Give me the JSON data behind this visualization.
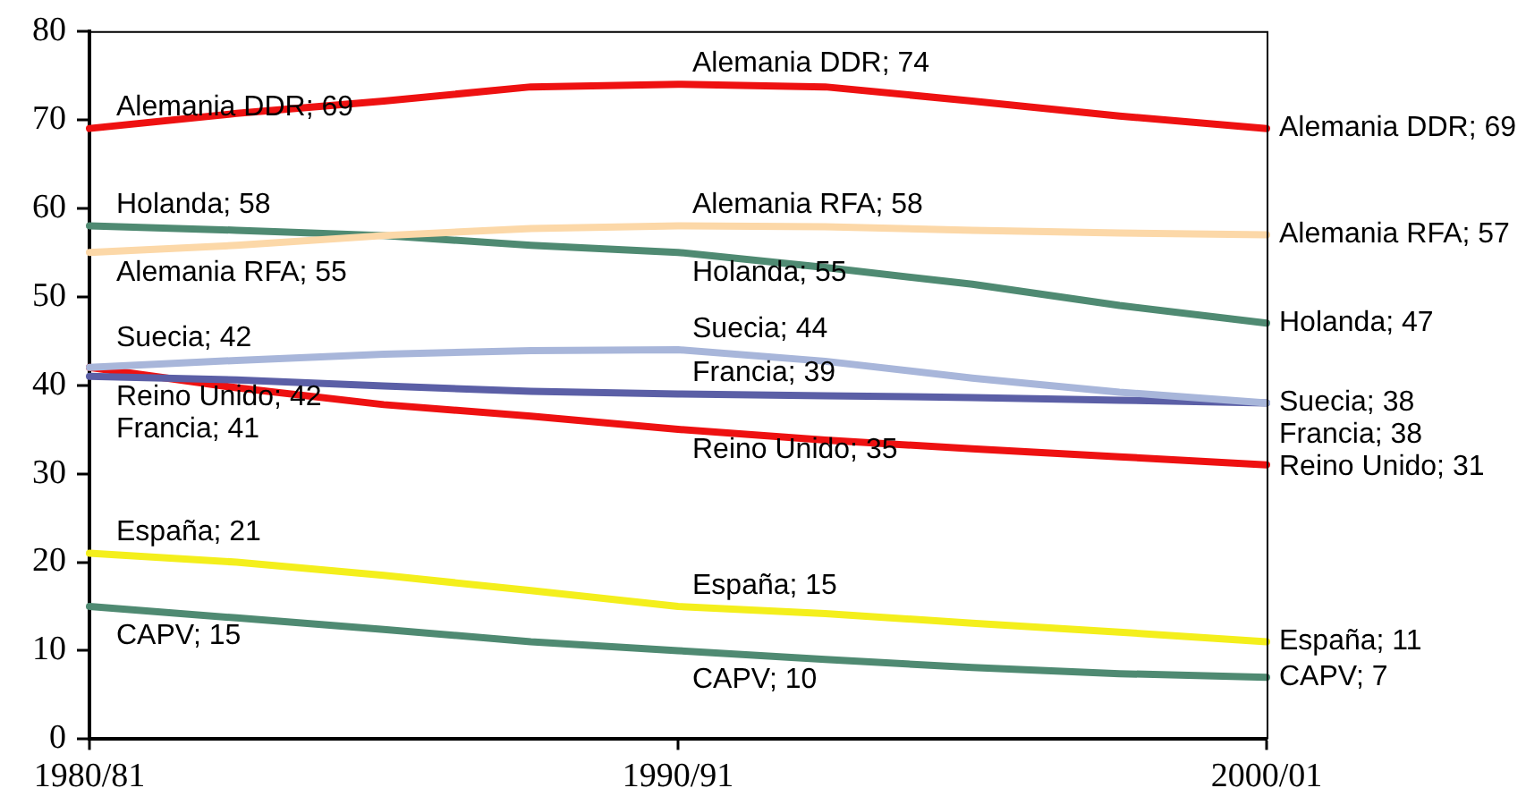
{
  "chart_data": {
    "type": "line",
    "categories": [
      "1980/81",
      null,
      null,
      null,
      "1990/91",
      null,
      null,
      null,
      "2000/01"
    ],
    "ylim": [
      0,
      80
    ],
    "yticks": [
      0,
      10,
      20,
      30,
      40,
      50,
      60,
      70,
      80
    ],
    "grid": false,
    "legend": false,
    "marker": "none",
    "series": [
      {
        "color": "#ee1111",
        "values": [
          69,
          70.7,
          72.1,
          73.7,
          74,
          73.7,
          72.1,
          70.4,
          69
        ],
        "value_labels": [
          "Alemania DDR; 69",
          null,
          null,
          null,
          "Alemania DDR; 74",
          null,
          null,
          null,
          "Alemania DDR; 69"
        ]
      },
      {
        "color": "#fcd8a8",
        "values": [
          55,
          55.8,
          56.9,
          57.7,
          58,
          57.9,
          57.5,
          57.2,
          57
        ],
        "value_labels": [
          "Alemania RFA; 55",
          null,
          null,
          null,
          "Alemania RFA; 58",
          null,
          null,
          null,
          "Alemania RFA; 57"
        ]
      },
      {
        "color": "#4f8a72",
        "values": [
          58,
          57.5,
          56.9,
          55.8,
          55,
          53.3,
          51.4,
          49,
          47
        ],
        "value_labels": [
          "Holanda; 58",
          null,
          null,
          null,
          "Holanda; 55",
          null,
          null,
          null,
          "Holanda; 47"
        ]
      },
      {
        "color": "#a8b6da",
        "values": [
          42,
          42.8,
          43.5,
          43.9,
          44,
          42.7,
          40.8,
          39.2,
          38
        ],
        "value_labels": [
          "Suecia; 42",
          null,
          null,
          null,
          "Suecia; 44",
          null,
          null,
          null,
          "Suecia; 38"
        ]
      },
      {
        "color": "#5b5fa6",
        "values": [
          41,
          40.6,
          39.9,
          39.3,
          39,
          38.8,
          38.6,
          38.3,
          38
        ],
        "value_labels": [
          "Francia; 41",
          null,
          null,
          null,
          "Francia; 39",
          null,
          null,
          null,
          "Francia; 38"
        ]
      },
      {
        "color": "#ee1111",
        "values": [
          42,
          39.7,
          37.8,
          36.5,
          35,
          33.8,
          32.8,
          31.9,
          31
        ],
        "value_labels": [
          "Reino Unido; 42",
          null,
          null,
          null,
          "Reino Unido; 35",
          null,
          null,
          null,
          "Reino Unido; 31"
        ]
      },
      {
        "color": "#f4ef1c",
        "values": [
          21,
          20,
          18.5,
          16.8,
          15,
          14.2,
          13.1,
          12.1,
          11
        ],
        "value_labels": [
          "España; 21",
          null,
          null,
          null,
          "España; 15",
          null,
          null,
          null,
          "España; 11"
        ]
      },
      {
        "color": "#4f8a72",
        "values": [
          15,
          13.7,
          12.4,
          11,
          10,
          9,
          8.1,
          7.4,
          7
        ],
        "value_labels": [
          "CAPV; 15",
          null,
          null,
          null,
          "CAPV; 10",
          null,
          null,
          null,
          "CAPV; 7"
        ]
      }
    ]
  }
}
